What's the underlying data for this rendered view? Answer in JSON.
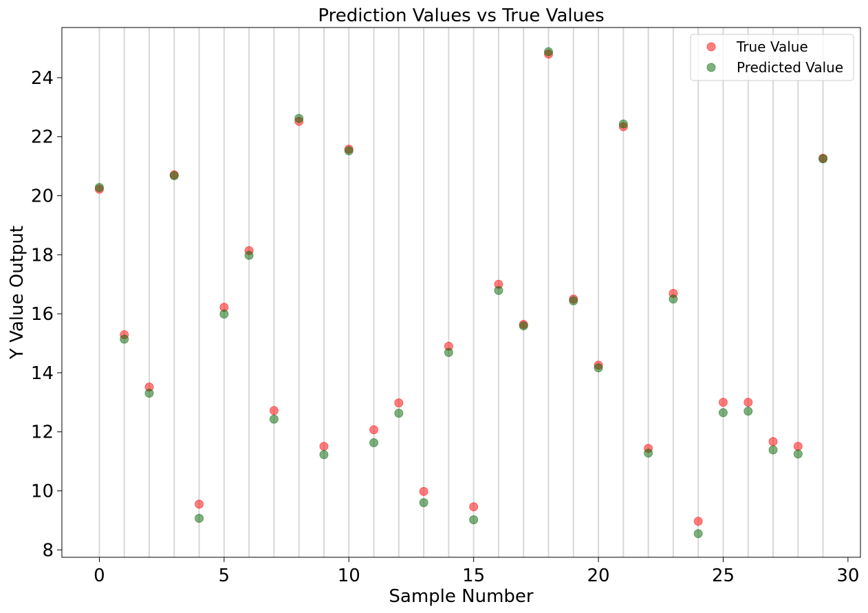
{
  "chart_data": {
    "type": "scatter",
    "title": "Prediction Values vs True Values",
    "xlabel": "Sample Number",
    "ylabel": "Y Value Output",
    "xlim": [
      -1.5,
      30.5
    ],
    "ylim": [
      7.75,
      25.7
    ],
    "xticks": [
      0,
      5,
      10,
      15,
      20,
      25,
      30
    ],
    "yticks": [
      8,
      10,
      12,
      14,
      16,
      18,
      20,
      22,
      24
    ],
    "grid": "vertical lines at each sample",
    "legend_position": "upper-right",
    "x": [
      0,
      1,
      2,
      3,
      4,
      5,
      6,
      7,
      8,
      9,
      10,
      11,
      12,
      13,
      14,
      15,
      16,
      17,
      18,
      19,
      20,
      21,
      22,
      23,
      24,
      25,
      26,
      27,
      28,
      29
    ],
    "series": [
      {
        "name": "True Value",
        "color": "#ff0000",
        "values": [
          20.22,
          15.29,
          13.52,
          20.71,
          9.55,
          16.22,
          18.14,
          12.72,
          22.52,
          11.51,
          21.58,
          12.07,
          12.98,
          9.98,
          14.9,
          9.46,
          17.0,
          15.64,
          24.8,
          16.5,
          14.26,
          22.34,
          11.44,
          16.69,
          8.97,
          13.0,
          13.0,
          11.67,
          11.51,
          21.27
        ]
      },
      {
        "name": "Predicted Value",
        "color": "#006400",
        "values": [
          20.28,
          15.14,
          13.31,
          20.68,
          9.07,
          15.99,
          17.98,
          12.43,
          22.62,
          11.23,
          21.52,
          11.63,
          12.63,
          9.6,
          14.69,
          9.02,
          16.79,
          15.59,
          24.88,
          16.44,
          14.17,
          22.43,
          11.28,
          16.5,
          8.55,
          12.65,
          12.7,
          11.39,
          11.25,
          21.25
        ]
      }
    ]
  }
}
